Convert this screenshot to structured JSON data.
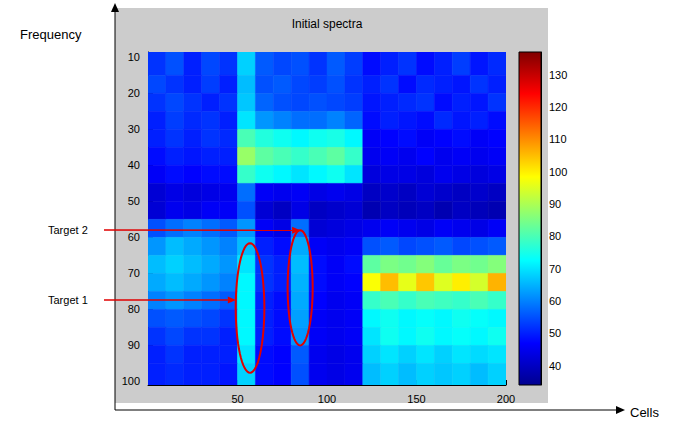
{
  "chart_data": {
    "type": "heatmap",
    "title": "Initial spectra",
    "xlabel": "Cells",
    "ylabel": "Frequency",
    "xlim": [
      0,
      200
    ],
    "xticks": [
      50,
      100,
      150,
      200
    ],
    "ylim": [
      8.5,
      101
    ],
    "yticks": [
      10,
      20,
      30,
      40,
      50,
      60,
      70,
      80,
      90,
      100
    ],
    "color_range": [
      34,
      137
    ],
    "color_ticks": [
      40,
      50,
      60,
      70,
      80,
      90,
      100,
      110,
      120,
      130
    ],
    "x_edges": [
      0,
      10,
      20,
      30,
      40,
      50,
      60,
      70,
      80,
      90,
      100,
      110,
      120,
      130,
      140,
      150,
      160,
      170,
      180,
      190,
      200
    ],
    "y_edges": [
      8.5,
      15,
      20,
      25,
      30,
      35,
      40,
      45,
      50,
      55,
      60,
      65,
      70,
      75,
      80,
      85,
      90,
      95,
      101
    ],
    "cells": [
      [
        52,
        55,
        50,
        54,
        52,
        68,
        56,
        54,
        55,
        52,
        56,
        53,
        48,
        50,
        52,
        48,
        50,
        53,
        49,
        51
      ],
      [
        54,
        52,
        50,
        53,
        50,
        66,
        55,
        56,
        54,
        53,
        55,
        52,
        50,
        52,
        48,
        51,
        50,
        49,
        52,
        50
      ],
      [
        52,
        54,
        52,
        50,
        52,
        67,
        57,
        55,
        54,
        55,
        54,
        53,
        49,
        50,
        51,
        52,
        48,
        50,
        49,
        52
      ],
      [
        50,
        53,
        51,
        52,
        50,
        70,
        62,
        60,
        58,
        58,
        60,
        57,
        48,
        50,
        49,
        48,
        51,
        49,
        50,
        48
      ],
      [
        50,
        52,
        50,
        52,
        51,
        80,
        76,
        74,
        72,
        74,
        75,
        72,
        46,
        47,
        48,
        46,
        47,
        48,
        46,
        47
      ],
      [
        48,
        50,
        49,
        50,
        50,
        88,
        82,
        80,
        78,
        80,
        82,
        78,
        45,
        46,
        45,
        47,
        45,
        46,
        45,
        46
      ],
      [
        46,
        48,
        47,
        48,
        48,
        78,
        74,
        72,
        70,
        72,
        74,
        70,
        43,
        44,
        44,
        43,
        45,
        44,
        43,
        44
      ],
      [
        42,
        44,
        43,
        44,
        45,
        58,
        46,
        45,
        46,
        44,
        45,
        44,
        40,
        41,
        40,
        42,
        41,
        40,
        41,
        40
      ],
      [
        42,
        45,
        44,
        46,
        46,
        55,
        42,
        40,
        44,
        40,
        41,
        42,
        38,
        40,
        39,
        40,
        38,
        40,
        39,
        38
      ],
      [
        55,
        58,
        60,
        58,
        56,
        62,
        46,
        44,
        58,
        42,
        43,
        44,
        45,
        46,
        45,
        44,
        46,
        45,
        44,
        46
      ],
      [
        62,
        66,
        64,
        62,
        60,
        66,
        50,
        48,
        64,
        46,
        45,
        46,
        55,
        56,
        54,
        55,
        56,
        54,
        55,
        56
      ],
      [
        66,
        68,
        66,
        64,
        62,
        70,
        52,
        50,
        66,
        48,
        46,
        48,
        82,
        85,
        84,
        86,
        83,
        85,
        84,
        86
      ],
      [
        64,
        66,
        64,
        62,
        60,
        72,
        52,
        50,
        65,
        48,
        46,
        47,
        98,
        105,
        96,
        104,
        95,
        100,
        94,
        106
      ],
      [
        60,
        62,
        60,
        58,
        56,
        72,
        50,
        48,
        64,
        47,
        45,
        46,
        78,
        80,
        78,
        80,
        79,
        78,
        80,
        78
      ],
      [
        55,
        56,
        55,
        54,
        52,
        72,
        50,
        48,
        63,
        46,
        45,
        46,
        72,
        74,
        72,
        73,
        72,
        74,
        73,
        72
      ],
      [
        52,
        54,
        52,
        52,
        50,
        72,
        50,
        48,
        62,
        46,
        45,
        46,
        70,
        74,
        72,
        74,
        72,
        73,
        72,
        74
      ],
      [
        50,
        52,
        50,
        50,
        50,
        70,
        48,
        47,
        56,
        45,
        44,
        45,
        68,
        70,
        68,
        70,
        68,
        70,
        69,
        70
      ],
      [
        50,
        51,
        50,
        50,
        49,
        68,
        48,
        47,
        55,
        45,
        44,
        45,
        66,
        68,
        66,
        68,
        67,
        68,
        66,
        68
      ]
    ],
    "annotations": [
      {
        "text": "Target 1",
        "x": 57,
        "y": 79.6,
        "rx": 8,
        "ry": 18
      },
      {
        "text": "Target 2",
        "x": 85,
        "y": 74,
        "rx": 7,
        "ry": 16
      }
    ]
  }
}
